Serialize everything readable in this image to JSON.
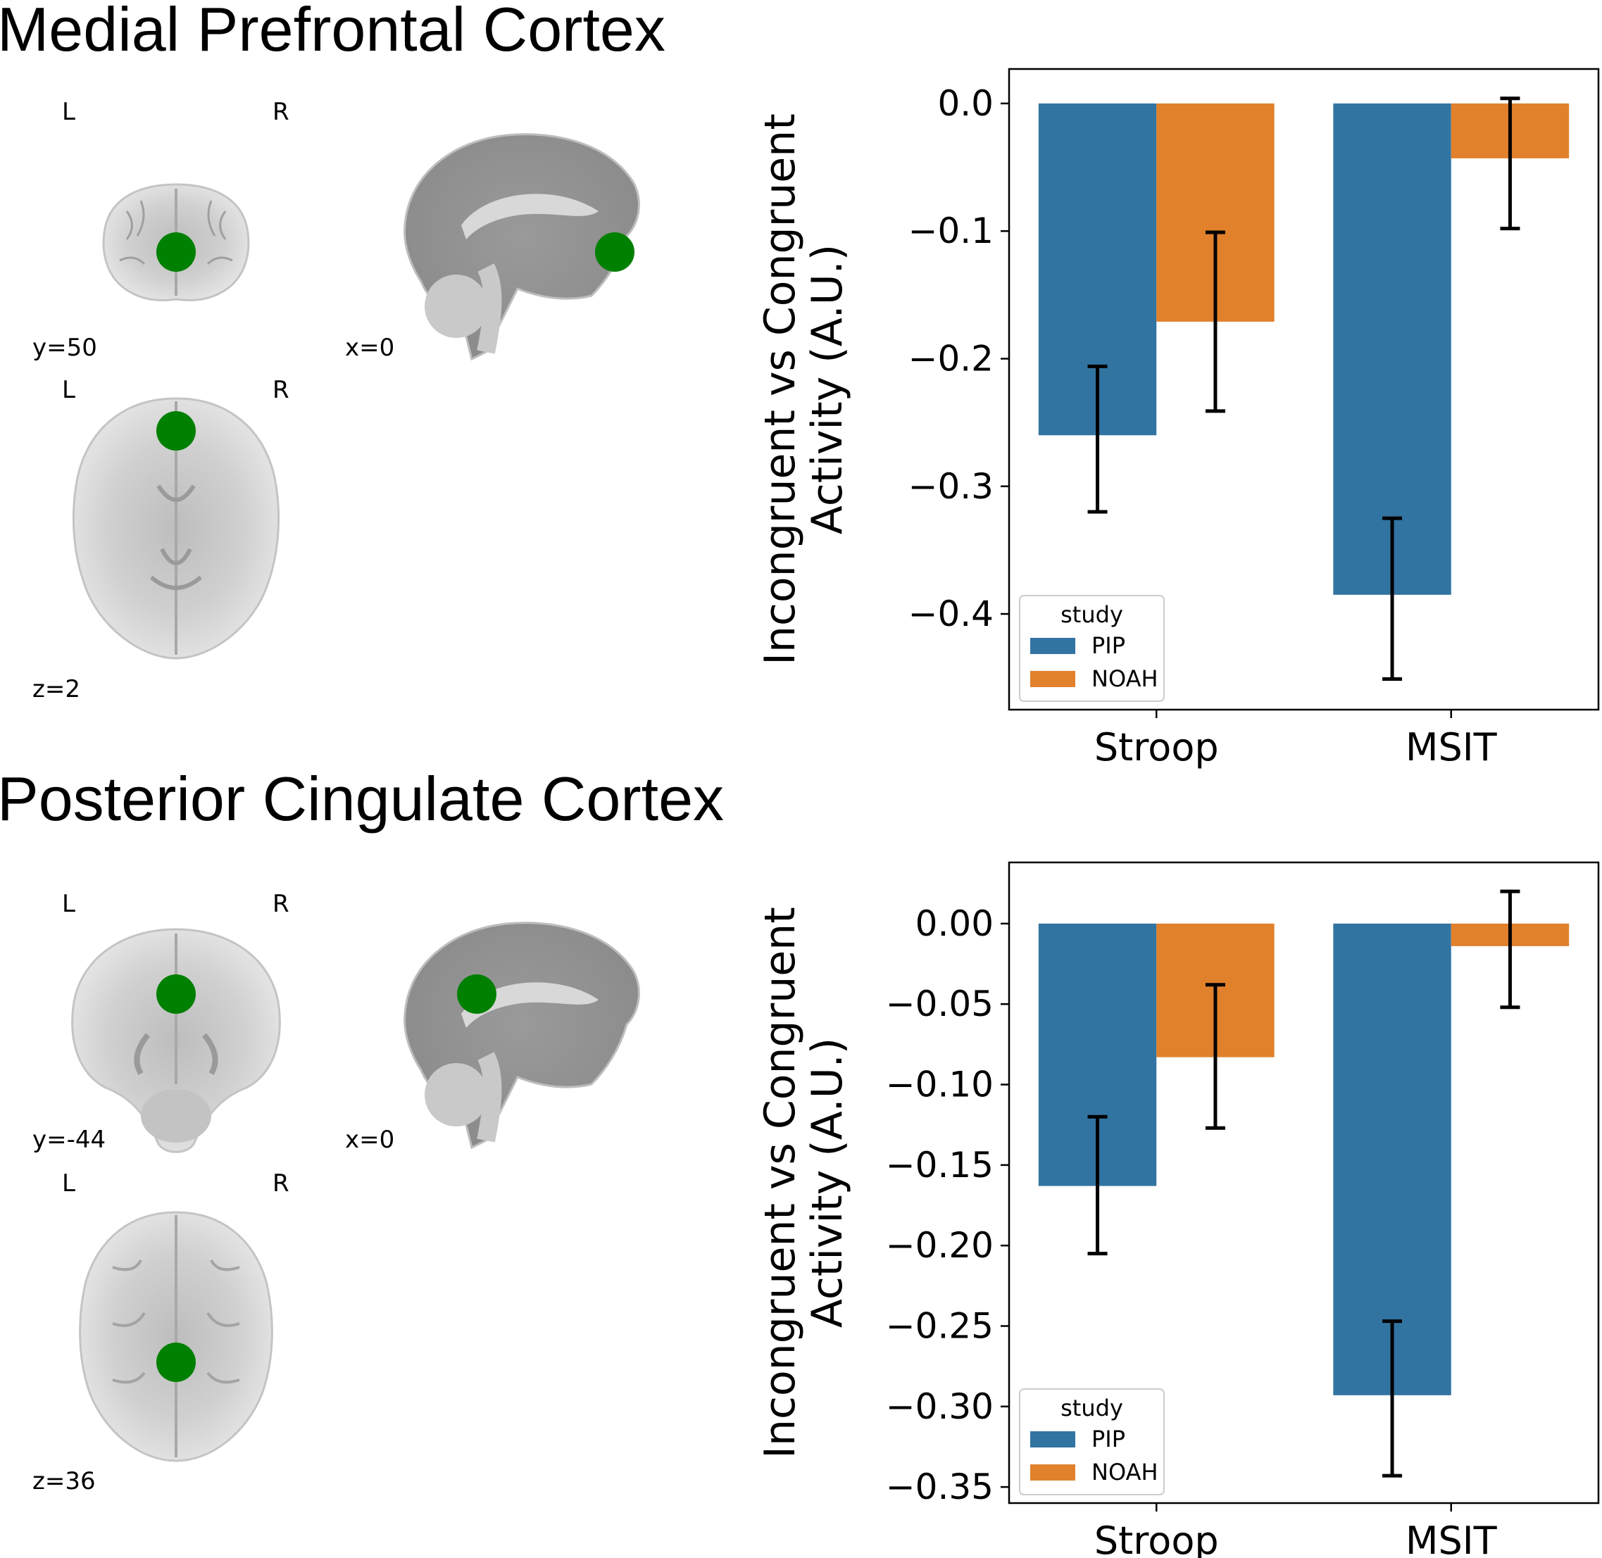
{
  "panels": [
    {
      "title": "Medial Prefrontal Cortex",
      "brain_views": [
        {
          "view": "coronal",
          "left_label": "L",
          "right_label": "R",
          "coord_label": "y=50"
        },
        {
          "view": "sagittal",
          "coord_label": "x=0"
        },
        {
          "view": "axial",
          "left_label": "L",
          "right_label": "R",
          "coord_label": "z=2"
        }
      ],
      "roi_color": "#008000"
    },
    {
      "title": "Posterior Cingulate Cortex",
      "brain_views": [
        {
          "view": "coronal",
          "left_label": "L",
          "right_label": "R",
          "coord_label": "y=-44"
        },
        {
          "view": "sagittal",
          "coord_label": "x=0"
        },
        {
          "view": "axial",
          "left_label": "L",
          "right_label": "R",
          "coord_label": "z=36"
        }
      ],
      "roi_color": "#008000"
    }
  ],
  "chart_data": [
    {
      "type": "bar",
      "categories": [
        "Stroop",
        "MSIT"
      ],
      "ylabel": "Incongruent vs Congruent\nActivity (A.U.)",
      "ylim": [
        -0.475,
        0.027
      ],
      "yticks": [
        0.0,
        -0.1,
        -0.2,
        -0.3,
        -0.4
      ],
      "ytick_labels": [
        "0.0",
        "−0.1",
        "−0.2",
        "−0.3",
        "−0.4"
      ],
      "grid": false,
      "legend": {
        "title": "study",
        "placement": "lower-left"
      },
      "series": [
        {
          "name": "PIP",
          "color": "#3274a1",
          "values": [
            -0.26,
            -0.385
          ],
          "err_low": [
            -0.32,
            -0.451
          ],
          "err_high": [
            -0.206,
            -0.325
          ]
        },
        {
          "name": "NOAH",
          "color": "#e1812c",
          "values": [
            -0.171,
            -0.043
          ],
          "err_low": [
            -0.241,
            -0.098
          ],
          "err_high": [
            -0.101,
            0.004
          ]
        }
      ]
    },
    {
      "type": "bar",
      "categories": [
        "Stroop",
        "MSIT"
      ],
      "ylabel": "Incongruent vs Congruent\nActivity (A.U.)",
      "ylim": [
        -0.36,
        0.038
      ],
      "yticks": [
        0.0,
        -0.05,
        -0.1,
        -0.15,
        -0.2,
        -0.25,
        -0.3,
        -0.35
      ],
      "ytick_labels": [
        "0.00",
        "−0.05",
        "−0.10",
        "−0.15",
        "−0.20",
        "−0.25",
        "−0.30",
        "−0.35"
      ],
      "grid": false,
      "legend": {
        "title": "study",
        "placement": "lower-left"
      },
      "series": [
        {
          "name": "PIP",
          "color": "#3274a1",
          "values": [
            -0.163,
            -0.293
          ],
          "err_low": [
            -0.205,
            -0.343
          ],
          "err_high": [
            -0.12,
            -0.247
          ]
        },
        {
          "name": "NOAH",
          "color": "#e1812c",
          "values": [
            -0.083,
            -0.014
          ],
          "err_low": [
            -0.127,
            -0.052
          ],
          "err_high": [
            -0.038,
            0.02
          ]
        }
      ]
    }
  ]
}
